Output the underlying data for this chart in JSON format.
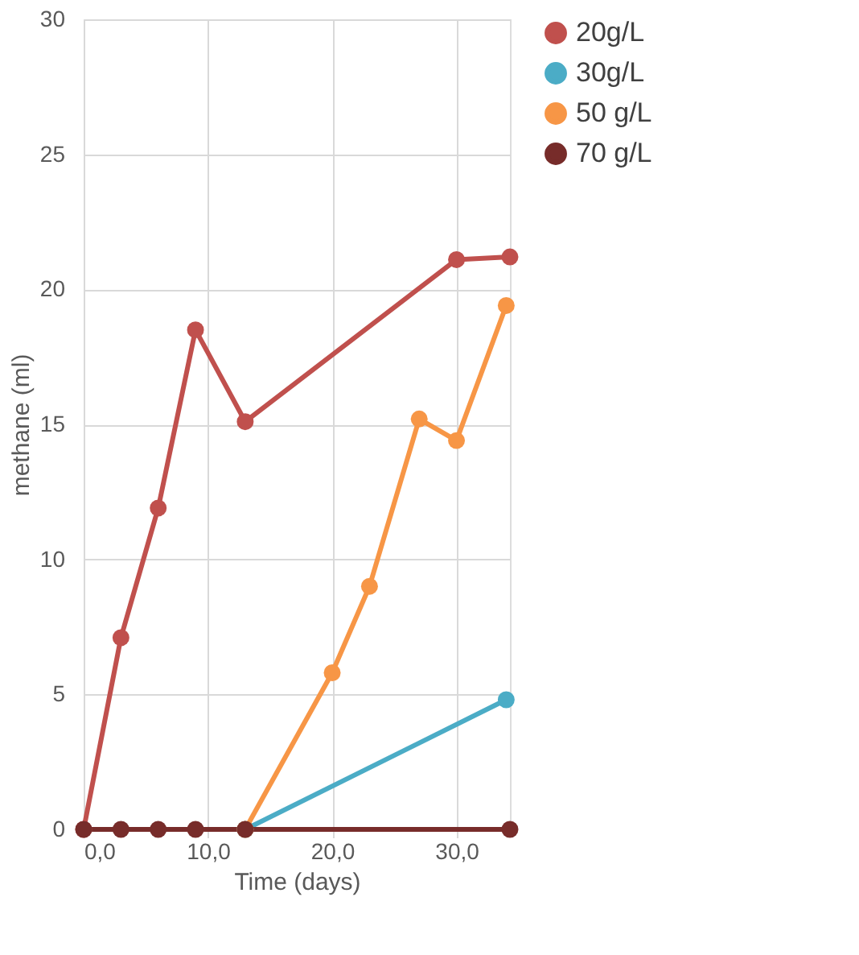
{
  "chart_data": {
    "type": "line",
    "xlabel": "Time (days)",
    "ylabel": "methane (ml)",
    "xlim": [
      0,
      34.3
    ],
    "ylim": [
      0,
      30
    ],
    "xticks": [
      {
        "value": 0,
        "label": "0,0"
      },
      {
        "value": 10,
        "label": "10,0"
      },
      {
        "value": 20,
        "label": "20,0"
      },
      {
        "value": 30,
        "label": "30,0"
      }
    ],
    "yticks": [
      0,
      5,
      10,
      15,
      20,
      25,
      30
    ],
    "grid": true,
    "legend": "right",
    "marker": "circle",
    "line_style": "solid",
    "series": [
      {
        "name": "20g/L",
        "color": "#c0504d",
        "x": [
          0,
          3,
          6,
          9,
          13,
          30,
          34.3
        ],
        "values": [
          0,
          7.1,
          11.9,
          18.5,
          15.1,
          21.1,
          21.2
        ]
      },
      {
        "name": "30g/L",
        "color": "#4bacc6",
        "x": [
          13,
          34
        ],
        "values": [
          0,
          4.8
        ]
      },
      {
        "name": "50 g/L",
        "color": "#f79646",
        "x": [
          13,
          20,
          23,
          27,
          30,
          34
        ],
        "values": [
          0,
          5.8,
          9.0,
          15.2,
          14.4,
          19.4
        ]
      },
      {
        "name": "70 g/L",
        "color": "#772c2a",
        "x": [
          0,
          3,
          6,
          9,
          13,
          34.3
        ],
        "values": [
          0,
          0,
          0,
          0,
          0,
          0
        ]
      }
    ]
  }
}
